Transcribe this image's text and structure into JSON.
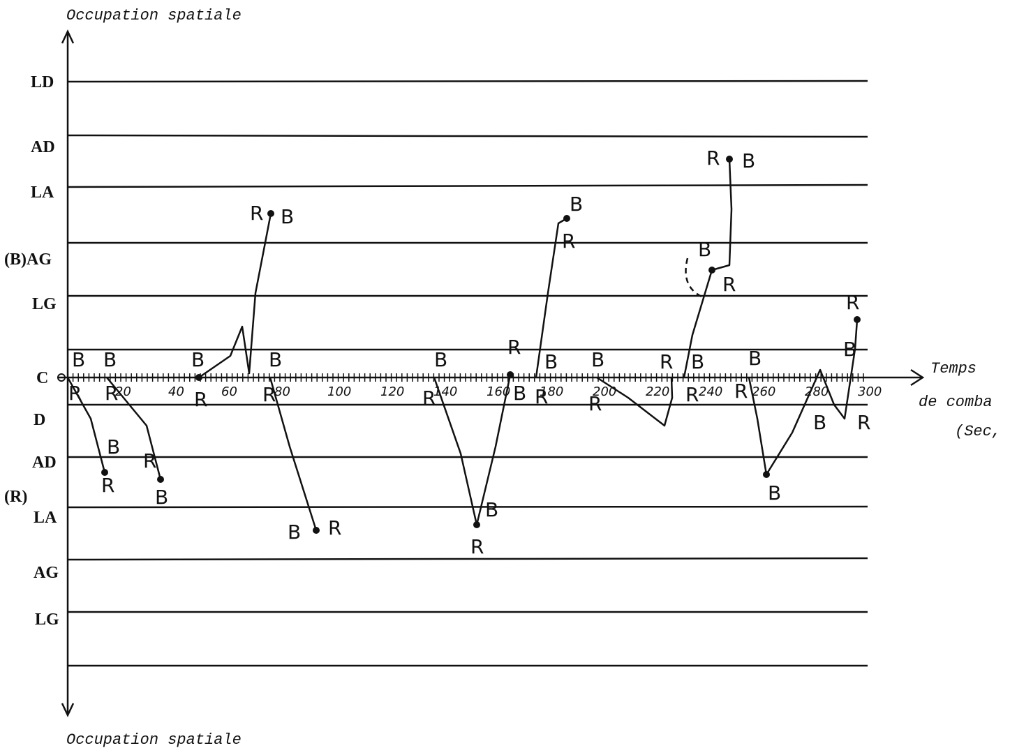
{
  "axis_title_top": "Occupation spatiale",
  "axis_title_bottom": "Occupation spatiale",
  "row_labels": [
    "LD",
    "AD",
    "LA",
    "(B)AG",
    "LG",
    "C",
    "D",
    "AD",
    "(R)",
    "LA",
    "AG",
    "LG"
  ],
  "time_axis": {
    "ticks": [
      20,
      40,
      60,
      80,
      100,
      120,
      140,
      160,
      180,
      200,
      220,
      240,
      260,
      280,
      300
    ],
    "title": [
      "Temps",
      "de comba",
      "(Sec,"
    ]
  },
  "annotations": [
    "B",
    "B",
    "R",
    "R",
    "B",
    "R",
    "R",
    "B",
    "B",
    "R",
    "R",
    "B",
    "B",
    "R",
    "B",
    "R",
    "B",
    "R",
    "B",
    "R",
    "R",
    "B",
    "B",
    "R",
    "B",
    "R",
    "B",
    "R",
    "R",
    "B",
    "R",
    "R",
    "B",
    "B",
    "R",
    "B",
    "R",
    "B",
    "B",
    "R",
    "R",
    "B"
  ]
}
